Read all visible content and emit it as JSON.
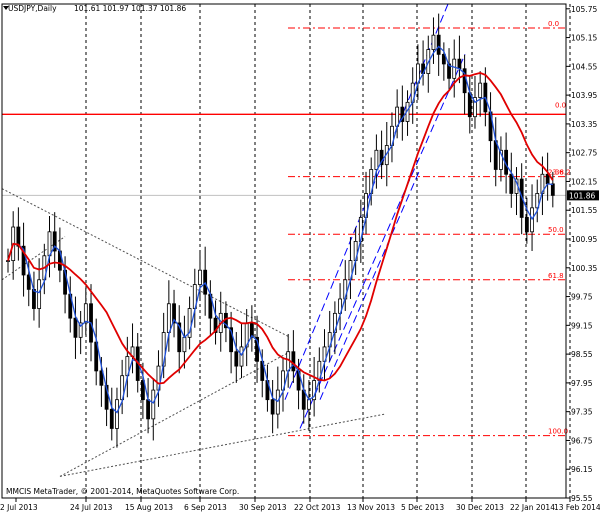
{
  "chart_data": {
    "type": "candlestick",
    "title": "USDJPY,Daily",
    "ohlc_readout": "101.61 101.97 101.37 101.86",
    "footer": "MMCIS MetaTrader, © 2001-2014, MetaQuotes Software Corp.",
    "current_price": "101.86",
    "ylim": [
      95.55,
      105.85
    ],
    "y_ticks": [
      "105.75",
      "105.15",
      "104.55",
      "103.95",
      "103.35",
      "102.75",
      "102.15",
      "101.55",
      "100.95",
      "100.35",
      "99.75",
      "99.15",
      "98.55",
      "97.95",
      "97.35",
      "96.75",
      "96.15",
      "95.55"
    ],
    "x_ticks": [
      "2 Jul 2013",
      "24 Jul 2013",
      "15 Aug 2013",
      "6 Sep 2013",
      "30 Sep 2013",
      "22 Oct 2013",
      "13 Nov 2013",
      "5 Dec 2013",
      "30 Dec 2013",
      "22 Jan 2014",
      "13 Feb 2014"
    ],
    "fib_levels": [
      {
        "label": "0.0",
        "value": 105.35
      },
      {
        "label": "23.6",
        "value": 102.25
      },
      {
        "label": "50.0",
        "value": 101.05
      },
      {
        "label": "61.8",
        "value": 100.1
      },
      {
        "label": "100.0",
        "value": 96.85
      }
    ],
    "fib_secondary": [
      {
        "label": "0.0",
        "value": 103.65
      },
      {
        "label": "38.2",
        "value": 102.25
      }
    ],
    "horizontal_line": 103.55,
    "close_series": [
      100.5,
      101.2,
      100.8,
      100.2,
      99.9,
      99.5,
      100.1,
      100.6,
      101.1,
      100.7,
      100.3,
      99.8,
      99.3,
      98.9,
      99.2,
      99.6,
      98.8,
      98.2,
      97.9,
      97.4,
      97.0,
      97.6,
      98.1,
      98.5,
      98.7,
      98.0,
      97.6,
      97.2,
      97.8,
      98.3,
      99.0,
      99.6,
      99.2,
      98.6,
      98.9,
      99.5,
      100.0,
      100.3,
      99.8,
      99.3,
      99.0,
      99.4,
      99.1,
      98.6,
      98.3,
      98.7,
      99.2,
      98.9,
      98.4,
      98.0,
      97.6,
      97.3,
      97.8,
      98.2,
      98.6,
      98.2,
      97.8,
      97.4,
      97.6,
      98.0,
      98.4,
      98.7,
      99.0,
      99.4,
      99.7,
      100.1,
      100.5,
      100.9,
      101.4,
      101.9,
      102.4,
      102.8,
      102.5,
      102.9,
      103.3,
      103.7,
      103.4,
      103.8,
      104.2,
      104.6,
      104.4,
      104.9,
      105.2,
      104.8,
      104.6,
      104.3,
      104.7,
      104.5,
      104.0,
      103.5,
      103.9,
      104.2,
      103.6,
      103.0,
      102.4,
      102.8,
      102.3,
      101.9,
      102.2,
      101.4,
      101.1,
      101.6,
      101.9,
      102.3,
      102.1,
      101.86
    ]
  }
}
